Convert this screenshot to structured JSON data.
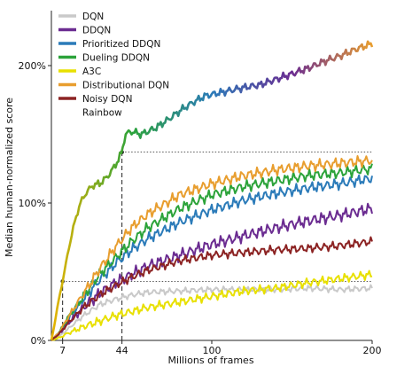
{
  "chart_data": {
    "type": "line",
    "title": "",
    "xlabel": "Millions of frames",
    "ylabel": "Median human-normalized score",
    "xlim": [
      0,
      200
    ],
    "ylim": [
      0,
      240
    ],
    "x_ticks": [
      {
        "value": 7,
        "label": "7"
      },
      {
        "value": 44,
        "label": "44"
      },
      {
        "value": 100,
        "label": "100"
      },
      {
        "value": 200,
        "label": "200"
      }
    ],
    "y_ticks": [
      {
        "value": 0,
        "label": "0%"
      },
      {
        "value": 100,
        "label": "100%"
      },
      {
        "value": 200,
        "label": "200%"
      }
    ],
    "legend": "top-left",
    "grid": false,
    "reference_lines": [
      {
        "x": 7,
        "y": 43
      },
      {
        "x": 44,
        "y": 137
      }
    ],
    "series": [
      {
        "name": "DQN",
        "color": "#c9c9c9",
        "x": [
          0,
          5,
          10,
          20,
          30,
          40,
          50,
          60,
          80,
          100,
          120,
          140,
          160,
          180,
          200
        ],
        "y": [
          0,
          3,
          8,
          18,
          26,
          30,
          33,
          35,
          36,
          37,
          37,
          37,
          38,
          37,
          38
        ]
      },
      {
        "name": "DDQN",
        "color": "#6b2c91",
        "x": [
          0,
          5,
          10,
          20,
          30,
          40,
          50,
          60,
          80,
          100,
          120,
          140,
          160,
          180,
          200
        ],
        "y": [
          0,
          5,
          12,
          24,
          34,
          42,
          48,
          54,
          62,
          70,
          76,
          82,
          87,
          91,
          96
        ]
      },
      {
        "name": "Prioritized DDQN",
        "color": "#2b7bb9",
        "x": [
          0,
          5,
          10,
          20,
          30,
          40,
          50,
          60,
          80,
          100,
          120,
          140,
          160,
          180,
          200
        ],
        "y": [
          0,
          6,
          15,
          30,
          44,
          56,
          66,
          74,
          86,
          95,
          102,
          107,
          111,
          114,
          118
        ]
      },
      {
        "name": "Dueling DDQN",
        "color": "#2ca33a",
        "x": [
          0,
          5,
          10,
          20,
          30,
          40,
          50,
          60,
          80,
          100,
          120,
          140,
          160,
          180,
          200
        ],
        "y": [
          0,
          6,
          16,
          32,
          48,
          60,
          72,
          82,
          96,
          106,
          112,
          116,
          120,
          122,
          125
        ]
      },
      {
        "name": "A3C",
        "color": "#e8e000",
        "x": [
          0,
          5,
          10,
          20,
          30,
          40,
          50,
          60,
          80,
          100,
          120,
          140,
          160,
          180,
          200
        ],
        "y": [
          0,
          2,
          5,
          10,
          14,
          18,
          21,
          24,
          28,
          32,
          36,
          38,
          42,
          45,
          48
        ]
      },
      {
        "name": "Distributional DQN",
        "color": "#e89e2f",
        "x": [
          0,
          5,
          10,
          20,
          30,
          40,
          50,
          60,
          80,
          100,
          120,
          140,
          160,
          180,
          200
        ],
        "y": [
          0,
          6,
          16,
          34,
          52,
          68,
          82,
          92,
          106,
          114,
          120,
          124,
          127,
          129,
          131
        ]
      },
      {
        "name": "Noisy DQN",
        "color": "#8c2323",
        "x": [
          0,
          5,
          10,
          20,
          30,
          40,
          50,
          60,
          80,
          100,
          120,
          140,
          160,
          180,
          200
        ],
        "y": [
          0,
          5,
          12,
          24,
          33,
          40,
          46,
          51,
          58,
          62,
          64,
          66,
          67,
          69,
          72
        ]
      },
      {
        "name": "Rainbow",
        "color": "#e8b400",
        "x": [
          0,
          2,
          4,
          7,
          10,
          14,
          18,
          22,
          26,
          30,
          34,
          38,
          42,
          44,
          46,
          50,
          56,
          64,
          72,
          80,
          88,
          96,
          104,
          112,
          120,
          130,
          140,
          150,
          160,
          170,
          180,
          190,
          200
        ],
        "y": [
          0,
          12,
          26,
          43,
          62,
          84,
          100,
          108,
          113,
          114,
          118,
          124,
          132,
          137,
          150,
          152,
          150,
          154,
          160,
          167,
          173,
          178,
          180,
          182,
          184,
          186,
          190,
          194,
          198,
          203,
          207,
          212,
          216
        ]
      }
    ]
  }
}
